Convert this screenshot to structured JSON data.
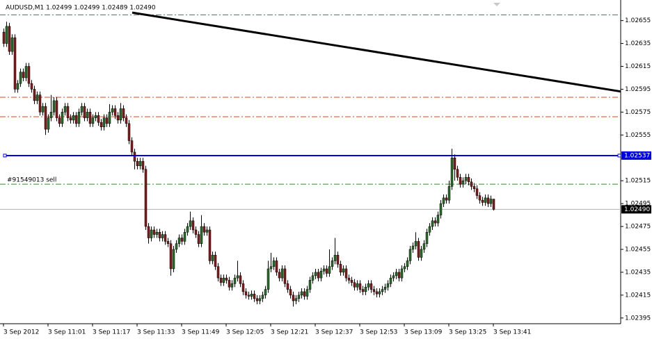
{
  "chart_data": {
    "type": "candlestick",
    "title": "AUDUSD,M1  1.02499 1.02499 1.02489 1.02490",
    "up_color": "#2f6b2f",
    "down_color": "#7a2020",
    "wick_color": "#000000",
    "ylim": [
      1.0239,
      1.02673
    ],
    "yticks": [
      1.02655,
      1.02635,
      1.02615,
      1.02595,
      1.02575,
      1.02555,
      1.02515,
      1.02495,
      1.02475,
      1.02455,
      1.02435,
      1.02415,
      1.02395
    ],
    "categories": [
      "3 Sep 2012",
      null,
      null,
      null,
      null,
      null,
      null,
      null,
      null,
      null,
      null,
      null,
      null,
      null,
      null,
      null,
      "3 Sep 11:01",
      null,
      null,
      null,
      null,
      null,
      null,
      null,
      null,
      null,
      null,
      null,
      null,
      null,
      null,
      null,
      "3 Sep 11:17",
      null,
      null,
      null,
      null,
      null,
      null,
      null,
      null,
      null,
      null,
      null,
      null,
      null,
      null,
      null,
      "3 Sep 11:33",
      null,
      null,
      null,
      null,
      null,
      null,
      null,
      null,
      null,
      null,
      null,
      null,
      null,
      null,
      null,
      "3 Sep 11:49",
      null,
      null,
      null,
      null,
      null,
      null,
      null,
      null,
      null,
      null,
      null,
      null,
      null,
      null,
      null,
      "3 Sep 12:05",
      null,
      null,
      null,
      null,
      null,
      null,
      null,
      null,
      null,
      null,
      null,
      null,
      null,
      null,
      null,
      "3 Sep 12:21",
      null,
      null,
      null,
      null,
      null,
      null,
      null,
      null,
      null,
      null,
      null,
      null,
      null,
      null,
      null,
      "3 Sep 12:37",
      null,
      null,
      null,
      null,
      null,
      null,
      null,
      null,
      null,
      null,
      null,
      null,
      null,
      null,
      null,
      "3 Sep 12:53",
      null,
      null,
      null,
      null,
      null,
      null,
      null,
      null,
      null,
      null,
      null,
      null,
      null,
      null,
      null,
      "3 Sep 13:09",
      null,
      null,
      null,
      null,
      null,
      null,
      null,
      null,
      null,
      null,
      null,
      null,
      null,
      null,
      null,
      "3 Sep 13:25",
      null,
      null,
      null,
      null,
      null,
      null,
      null,
      null,
      null,
      null,
      null,
      null,
      null,
      null,
      null,
      "3 Sep 13:41"
    ],
    "ohlc": [
      [
        1.02645,
        1.02648,
        1.02632,
        1.02635
      ],
      [
        1.02635,
        1.02654,
        1.02632,
        1.0265
      ],
      [
        1.0265,
        1.02653,
        1.02625,
        1.02628
      ],
      [
        1.02628,
        1.02643,
        1.02625,
        1.0264
      ],
      [
        1.0264,
        1.02643,
        1.02592,
        1.02595
      ],
      [
        1.02595,
        1.02603,
        1.02592,
        1.026
      ],
      [
        1.026,
        1.02613,
        1.02597,
        1.0261
      ],
      [
        1.0261,
        1.02613,
        1.02602,
        1.02605
      ],
      [
        1.02605,
        1.02618,
        1.02602,
        1.02615
      ],
      [
        1.02615,
        1.02618,
        1.02597,
        1.026
      ],
      [
        1.026,
        1.02603,
        1.02592,
        1.02595
      ],
      [
        1.02595,
        1.02598,
        1.02582,
        1.02585
      ],
      [
        1.02585,
        1.02593,
        1.02582,
        1.0259
      ],
      [
        1.0259,
        1.02593,
        1.02572,
        1.02575
      ],
      [
        1.02575,
        1.02583,
        1.02572,
        1.0258
      ],
      [
        1.0258,
        1.02583,
        1.02555,
        1.0256
      ],
      [
        1.0256,
        1.02573,
        1.02557,
        1.0257
      ],
      [
        1.0257,
        1.0259,
        1.02567,
        1.02575
      ],
      [
        1.02575,
        1.02588,
        1.02572,
        1.02585
      ],
      [
        1.02585,
        1.02588,
        1.02567,
        1.0257
      ],
      [
        1.0257,
        1.02573,
        1.02562,
        1.02565
      ],
      [
        1.02565,
        1.02578,
        1.02562,
        1.02575
      ],
      [
        1.02575,
        1.02583,
        1.02572,
        1.0258
      ],
      [
        1.0258,
        1.02583,
        1.02567,
        1.0257
      ],
      [
        1.0257,
        1.02573,
        1.02565,
        1.02568
      ],
      [
        1.02568,
        1.02575,
        1.02565,
        1.02572
      ],
      [
        1.02572,
        1.02575,
        1.02562,
        1.02565
      ],
      [
        1.02565,
        1.02578,
        1.02562,
        1.02575
      ],
      [
        1.02575,
        1.02583,
        1.02572,
        1.0258
      ],
      [
        1.0258,
        1.02583,
        1.02567,
        1.0257
      ],
      [
        1.0257,
        1.02578,
        1.02567,
        1.02575
      ],
      [
        1.02575,
        1.02578,
        1.02562,
        1.02565
      ],
      [
        1.02565,
        1.02573,
        1.02562,
        1.0257
      ],
      [
        1.0257,
        1.02575,
        1.02567,
        1.02572
      ],
      [
        1.02572,
        1.02575,
        1.02563,
        1.02566
      ],
      [
        1.02566,
        1.02569,
        1.02559,
        1.02562
      ],
      [
        1.02562,
        1.02573,
        1.02559,
        1.0257
      ],
      [
        1.0257,
        1.02573,
        1.02562,
        1.02565
      ],
      [
        1.02565,
        1.02582,
        1.02562,
        1.02575
      ],
      [
        1.02575,
        1.02581,
        1.02572,
        1.02578
      ],
      [
        1.02578,
        1.02581,
        1.02569,
        1.02572
      ],
      [
        1.02572,
        1.02575,
        1.02565,
        1.02568
      ],
      [
        1.02568,
        1.02583,
        1.02565,
        1.02578
      ],
      [
        1.02578,
        1.02581,
        1.02567,
        1.0257
      ],
      [
        1.0257,
        1.02573,
        1.02562,
        1.02565
      ],
      [
        1.02565,
        1.02568,
        1.02547,
        1.0255
      ],
      [
        1.0255,
        1.02553,
        1.02537,
        1.0254
      ],
      [
        1.0254,
        1.02543,
        1.02525,
        1.02532
      ],
      [
        1.02532,
        1.02535,
        1.02525,
        1.02528
      ],
      [
        1.02528,
        1.02535,
        1.02525,
        1.02532
      ],
      [
        1.02532,
        1.02535,
        1.02522,
        1.02525
      ],
      [
        1.02525,
        1.02528,
        1.02472,
        1.02475
      ],
      [
        1.02475,
        1.02478,
        1.0246,
        1.02465
      ],
      [
        1.02465,
        1.02475,
        1.02462,
        1.02472
      ],
      [
        1.02472,
        1.02475,
        1.02465,
        1.02468
      ],
      [
        1.02468,
        1.02473,
        1.02465,
        1.0247
      ],
      [
        1.0247,
        1.02473,
        1.02462,
        1.02465
      ],
      [
        1.02465,
        1.02471,
        1.02462,
        1.02468
      ],
      [
        1.02468,
        1.02471,
        1.02459,
        1.02462
      ],
      [
        1.02462,
        1.02465,
        1.02457,
        1.0246
      ],
      [
        1.0246,
        1.02463,
        1.02432,
        1.02438
      ],
      [
        1.02438,
        1.02458,
        1.02435,
        1.02455
      ],
      [
        1.02455,
        1.02463,
        1.02452,
        1.0246
      ],
      [
        1.0246,
        1.02468,
        1.02457,
        1.02465
      ],
      [
        1.02465,
        1.02468,
        1.02459,
        1.02462
      ],
      [
        1.02462,
        1.02473,
        1.02459,
        1.0247
      ],
      [
        1.0247,
        1.02478,
        1.02467,
        1.02475
      ],
      [
        1.02475,
        1.02488,
        1.02472,
        1.0248
      ],
      [
        1.0248,
        1.02483,
        1.02469,
        1.02472
      ],
      [
        1.02472,
        1.02475,
        1.02465,
        1.02468
      ],
      [
        1.02468,
        1.02471,
        1.02457,
        1.0246
      ],
      [
        1.0246,
        1.02485,
        1.02457,
        1.02475
      ],
      [
        1.02475,
        1.02478,
        1.02467,
        1.0247
      ],
      [
        1.0247,
        1.02475,
        1.02467,
        1.02472
      ],
      [
        1.02472,
        1.02475,
        1.02442,
        1.02445
      ],
      [
        1.02445,
        1.02453,
        1.02442,
        1.0245
      ],
      [
        1.0245,
        1.02453,
        1.02437,
        1.0244
      ],
      [
        1.0244,
        1.02443,
        1.02427,
        1.0243
      ],
      [
        1.0243,
        1.02433,
        1.02423,
        1.02426
      ],
      [
        1.02426,
        1.02433,
        1.02423,
        1.0243
      ],
      [
        1.0243,
        1.02433,
        1.02425,
        1.02428
      ],
      [
        1.02428,
        1.02431,
        1.02419,
        1.02422
      ],
      [
        1.02422,
        1.02428,
        1.02419,
        1.02425
      ],
      [
        1.02425,
        1.02433,
        1.02422,
        1.0243
      ],
      [
        1.0243,
        1.02445,
        1.02427,
        1.02432
      ],
      [
        1.02432,
        1.02435,
        1.02422,
        1.02425
      ],
      [
        1.02425,
        1.02428,
        1.02415,
        1.02418
      ],
      [
        1.02418,
        1.02421,
        1.02412,
        1.02415
      ],
      [
        1.02415,
        1.02418,
        1.02411,
        1.02414
      ],
      [
        1.02414,
        1.02419,
        1.02411,
        1.02416
      ],
      [
        1.02416,
        1.02419,
        1.02409,
        1.02412
      ],
      [
        1.02412,
        1.02415,
        1.02407,
        1.0241
      ],
      [
        1.0241,
        1.02415,
        1.02407,
        1.02412
      ],
      [
        1.02412,
        1.02418,
        1.02409,
        1.02415
      ],
      [
        1.02415,
        1.02423,
        1.02412,
        1.0242
      ],
      [
        1.0242,
        1.02445,
        1.02417,
        1.02438
      ],
      [
        1.02438,
        1.02452,
        1.02435,
        1.0244
      ],
      [
        1.0244,
        1.02448,
        1.02437,
        1.02445
      ],
      [
        1.02445,
        1.02448,
        1.02432,
        1.02435
      ],
      [
        1.02435,
        1.02438,
        1.02427,
        1.0243
      ],
      [
        1.0243,
        1.02441,
        1.02427,
        1.02438
      ],
      [
        1.02438,
        1.02441,
        1.02422,
        1.02425
      ],
      [
        1.02425,
        1.02428,
        1.02417,
        1.0242
      ],
      [
        1.0242,
        1.02423,
        1.02412,
        1.02415
      ],
      [
        1.02415,
        1.02418,
        1.02405,
        1.0241
      ],
      [
        1.0241,
        1.02415,
        1.02407,
        1.02412
      ],
      [
        1.02412,
        1.02418,
        1.02409,
        1.02415
      ],
      [
        1.02415,
        1.02421,
        1.02412,
        1.02418
      ],
      [
        1.02418,
        1.02421,
        1.02411,
        1.02414
      ],
      [
        1.02414,
        1.02423,
        1.02411,
        1.0242
      ],
      [
        1.0242,
        1.02431,
        1.02417,
        1.02428
      ],
      [
        1.02428,
        1.02435,
        1.02425,
        1.02432
      ],
      [
        1.02432,
        1.02438,
        1.02429,
        1.02435
      ],
      [
        1.02435,
        1.02438,
        1.02427,
        1.0243
      ],
      [
        1.0243,
        1.02439,
        1.02427,
        1.02436
      ],
      [
        1.02436,
        1.02441,
        1.02433,
        1.02438
      ],
      [
        1.02438,
        1.02441,
        1.02431,
        1.02434
      ],
      [
        1.02434,
        1.02455,
        1.02431,
        1.0244
      ],
      [
        1.0244,
        1.02448,
        1.02437,
        1.02445
      ],
      [
        1.02445,
        1.02465,
        1.02442,
        1.0245
      ],
      [
        1.0245,
        1.02453,
        1.02439,
        1.02442
      ],
      [
        1.02442,
        1.02445,
        1.02432,
        1.02435
      ],
      [
        1.02435,
        1.02441,
        1.02432,
        1.02438
      ],
      [
        1.02438,
        1.02441,
        1.02427,
        1.0243
      ],
      [
        1.0243,
        1.02433,
        1.02425,
        1.02428
      ],
      [
        1.02428,
        1.02431,
        1.02423,
        1.02426
      ],
      [
        1.02426,
        1.02429,
        1.02419,
        1.02422
      ],
      [
        1.02422,
        1.02428,
        1.02419,
        1.02425
      ],
      [
        1.02425,
        1.02428,
        1.02417,
        1.0242
      ],
      [
        1.0242,
        1.02423,
        1.02415,
        1.02418
      ],
      [
        1.02418,
        1.02425,
        1.02415,
        1.02422
      ],
      [
        1.02422,
        1.02428,
        1.02419,
        1.02425
      ],
      [
        1.02425,
        1.02428,
        1.02417,
        1.0242
      ],
      [
        1.0242,
        1.02423,
        1.02415,
        1.02418
      ],
      [
        1.02418,
        1.02421,
        1.02413,
        1.02416
      ],
      [
        1.02416,
        1.02421,
        1.02413,
        1.02418
      ],
      [
        1.02418,
        1.02423,
        1.02415,
        1.0242
      ],
      [
        1.0242,
        1.02425,
        1.02417,
        1.02422
      ],
      [
        1.02422,
        1.02428,
        1.02419,
        1.02425
      ],
      [
        1.02425,
        1.02433,
        1.02422,
        1.0243
      ],
      [
        1.0243,
        1.02435,
        1.02427,
        1.02432
      ],
      [
        1.02432,
        1.02438,
        1.02429,
        1.02435
      ],
      [
        1.02435,
        1.02438,
        1.02427,
        1.0243
      ],
      [
        1.0243,
        1.02441,
        1.02427,
        1.02438
      ],
      [
        1.02438,
        1.02443,
        1.02435,
        1.0244
      ],
      [
        1.0244,
        1.02448,
        1.02437,
        1.02445
      ],
      [
        1.02445,
        1.02458,
        1.02442,
        1.02455
      ],
      [
        1.02455,
        1.02461,
        1.02452,
        1.02458
      ],
      [
        1.02458,
        1.0247,
        1.02455,
        1.02462
      ],
      [
        1.02462,
        1.02465,
        1.02445,
        1.02448
      ],
      [
        1.02448,
        1.02458,
        1.02445,
        1.02455
      ],
      [
        1.02455,
        1.02463,
        1.02452,
        1.0246
      ],
      [
        1.0246,
        1.02473,
        1.02457,
        1.0247
      ],
      [
        1.0247,
        1.02478,
        1.02467,
        1.02475
      ],
      [
        1.02475,
        1.02483,
        1.02472,
        1.0248
      ],
      [
        1.0248,
        1.02483,
        1.02475,
        1.02478
      ],
      [
        1.02478,
        1.02488,
        1.02475,
        1.02485
      ],
      [
        1.02485,
        1.02498,
        1.02482,
        1.02495
      ],
      [
        1.02495,
        1.02503,
        1.02492,
        1.025
      ],
      [
        1.025,
        1.02503,
        1.02495,
        1.02498
      ],
      [
        1.02498,
        1.02515,
        1.02495,
        1.0251
      ],
      [
        1.0251,
        1.02543,
        1.02507,
        1.02535
      ],
      [
        1.02535,
        1.02538,
        1.02515,
        1.02525
      ],
      [
        1.02525,
        1.02528,
        1.02515,
        1.02518
      ],
      [
        1.02518,
        1.02521,
        1.02509,
        1.02512
      ],
      [
        1.02512,
        1.02518,
        1.02509,
        1.02515
      ],
      [
        1.02515,
        1.02521,
        1.02512,
        1.02518
      ],
      [
        1.02518,
        1.02521,
        1.02511,
        1.02514
      ],
      [
        1.02514,
        1.02517,
        1.02507,
        1.0251
      ],
      [
        1.0251,
        1.02513,
        1.02505,
        1.02508
      ],
      [
        1.02508,
        1.02511,
        1.02499,
        1.02502
      ],
      [
        1.02502,
        1.02505,
        1.02495,
        1.02498
      ],
      [
        1.02498,
        1.02501,
        1.02493,
        1.02496
      ],
      [
        1.02496,
        1.02503,
        1.02493,
        1.025
      ],
      [
        1.025,
        1.02503,
        1.02492,
        1.02495
      ],
      [
        1.02495,
        1.02502,
        1.02492,
        1.02499
      ],
      [
        1.02499,
        1.02499,
        1.02489,
        1.0249
      ]
    ],
    "levels": [
      {
        "value": 1.0266,
        "color": "#2e8b2e"
      },
      {
        "value": 1.02588,
        "color": "#e0401a"
      },
      {
        "value": 1.02571,
        "color": "#e0401a"
      },
      {
        "value": 1.02512,
        "color": "#2e8b2e",
        "label": "#91549013 sell"
      }
    ],
    "hline": {
      "value": 1.02537,
      "color": "#0000e0"
    },
    "price_line": {
      "value": 1.0249,
      "label": "1.02490",
      "color": "#b0b0b0"
    },
    "trendline": {
      "from": 1.02662,
      "to": 1.02593,
      "color": "#000000"
    }
  }
}
